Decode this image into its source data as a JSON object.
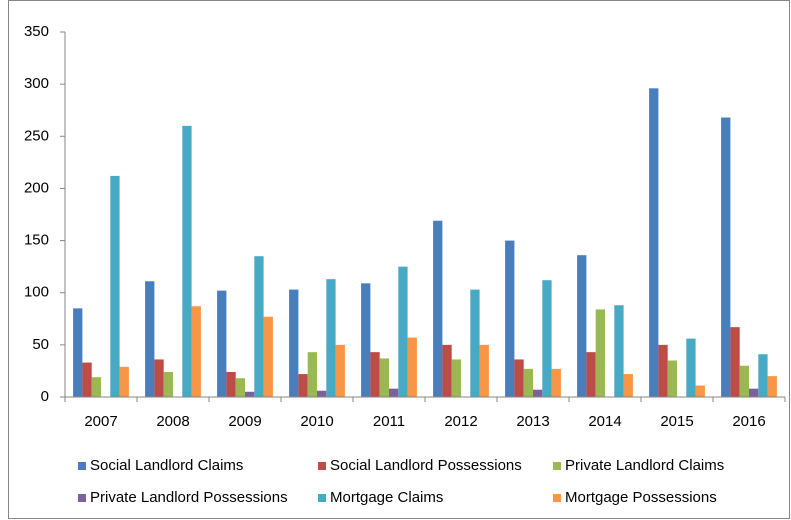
{
  "chart_data": {
    "type": "bar",
    "categories": [
      "2007",
      "2008",
      "2009",
      "2010",
      "2011",
      "2012",
      "2013",
      "2014",
      "2015",
      "2016"
    ],
    "series": [
      {
        "name": "Social Landlord Claims",
        "color": "#4a7ebb",
        "values": [
          85,
          111,
          102,
          103,
          109,
          169,
          150,
          136,
          296,
          268
        ]
      },
      {
        "name": "Social Landlord Possessions",
        "color": "#be4b48",
        "values": [
          33,
          36,
          24,
          22,
          43,
          50,
          36,
          43,
          50,
          67
        ]
      },
      {
        "name": "Private Landlord Claims",
        "color": "#98b954",
        "values": [
          19,
          24,
          18,
          43,
          37,
          36,
          27,
          84,
          35,
          30
        ]
      },
      {
        "name": "Private Landlord Possessions",
        "color": "#7d60a0",
        "values": [
          0,
          0,
          5,
          6,
          8,
          0,
          7,
          0,
          0,
          8
        ]
      },
      {
        "name": "Mortgage Claims",
        "color": "#46aac5",
        "values": [
          212,
          260,
          135,
          113,
          125,
          103,
          112,
          88,
          56,
          41
        ]
      },
      {
        "name": "Mortgage Possessions",
        "color": "#f79646",
        "values": [
          29,
          87,
          77,
          50,
          57,
          50,
          27,
          22,
          11,
          20
        ]
      }
    ],
    "ylim": [
      0,
      350
    ],
    "yticks": [
      0,
      50,
      100,
      150,
      200,
      250,
      300,
      350
    ],
    "grid": false,
    "legend": "bottom"
  }
}
